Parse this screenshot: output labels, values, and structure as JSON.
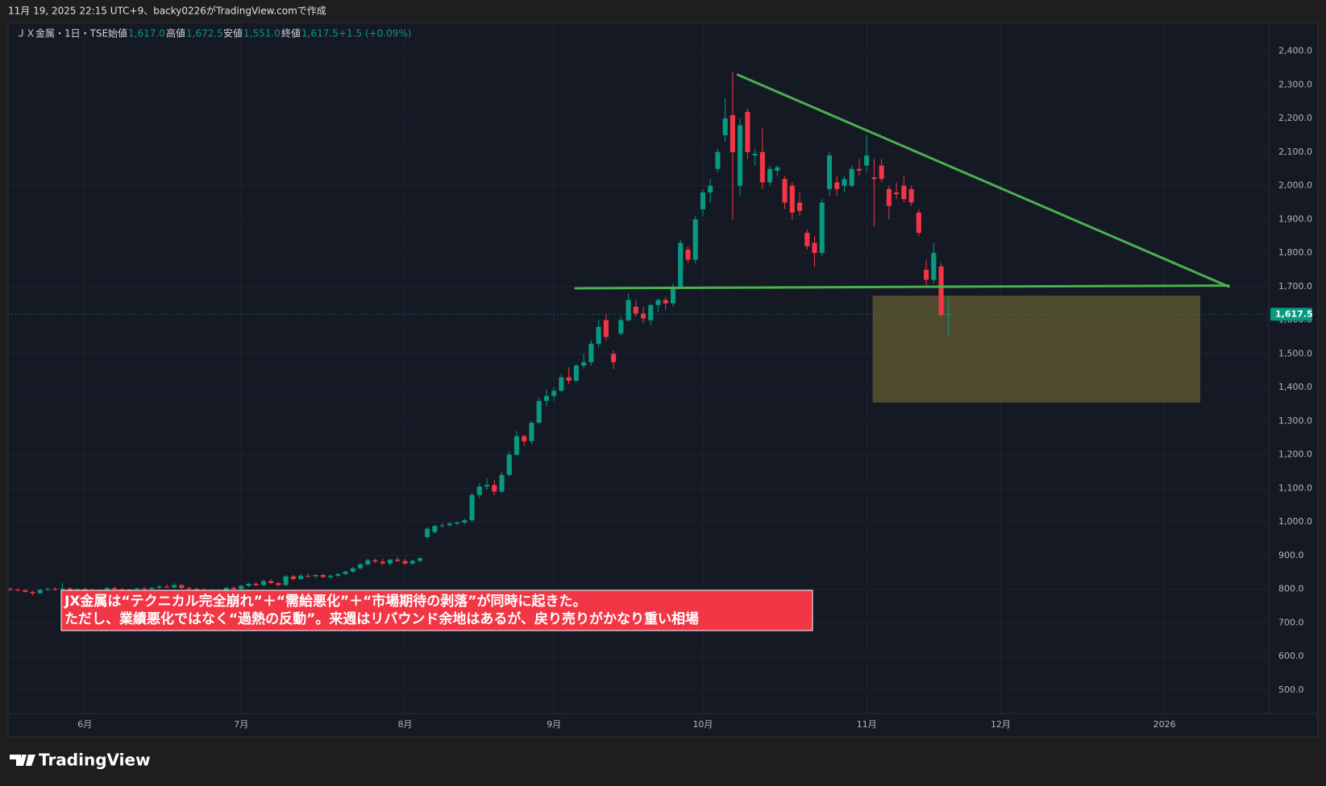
{
  "chart_data": {
    "type": "candlestick",
    "caption": "11月 19, 2025 22:15 UTC+9、backy0226がTradingView.comで作成",
    "brand": "TradingView",
    "legend": {
      "symbol": "ＪＸ金属・1日・TSE",
      "open_label": "始値",
      "open": "1,617.0",
      "high_label": "高値",
      "high": "1,672.5",
      "low_label": "安値",
      "low": "1,551.0",
      "close_label": "終値",
      "close": "1,617.5",
      "change": "+1.5 (+0.09%)"
    },
    "annotation": [
      "JX金属は“テクニカル完全崩れ”＋“需給悪化”＋“市場期待の剥落”が同時に起きた。",
      "ただし、業績悪化ではなく“過熱の反動”。来週はリバウンド余地はあるが、戻り売りがかなり重い相場"
    ],
    "up_color": "#089981",
    "down_color": "#f23645",
    "xlim": [
      -0.2,
      169
    ],
    "ylim": [
      430,
      2483
    ],
    "xticks": [
      {
        "value": 10,
        "label": "6月"
      },
      {
        "value": 31,
        "label": "7月"
      },
      {
        "value": 53,
        "label": "8月"
      },
      {
        "value": 73,
        "label": "9月"
      },
      {
        "value": 93,
        "label": "10月"
      },
      {
        "value": 115,
        "label": "11月"
      },
      {
        "value": 133,
        "label": "12月"
      },
      {
        "value": 155,
        "label": "2026"
      }
    ],
    "yticks": [
      {
        "value": 500,
        "label": "500.0"
      },
      {
        "value": 600,
        "label": "600.0"
      },
      {
        "value": 700,
        "label": "700.0"
      },
      {
        "value": 800,
        "label": "800.0"
      },
      {
        "value": 900,
        "label": "900.0"
      },
      {
        "value": 1000,
        "label": "1,000.0"
      },
      {
        "value": 1100,
        "label": "1,100.0"
      },
      {
        "value": 1200,
        "label": "1,200.0"
      },
      {
        "value": 1300,
        "label": "1,300.0"
      },
      {
        "value": 1400,
        "label": "1,400.0"
      },
      {
        "value": 1500,
        "label": "1,500.0"
      },
      {
        "value": 1600,
        "label": "1,600.0"
      },
      {
        "value": 1700,
        "label": "1,700.0"
      },
      {
        "value": 1800,
        "label": "1,800.0"
      },
      {
        "value": 1900,
        "label": "1,900.0"
      },
      {
        "value": 2000,
        "label": "2,000.0"
      },
      {
        "value": 2100,
        "label": "2,100.0"
      },
      {
        "value": 2200,
        "label": "2,200.0"
      },
      {
        "value": 2300,
        "label": "2,300.0"
      },
      {
        "value": 2400,
        "label": "2,400.0"
      }
    ],
    "grid": true,
    "last_price": {
      "value": 1617.5,
      "label": "1,617.5"
    },
    "trendlines": [
      {
        "color": "#4caf50",
        "points": [
          [
            97.7,
            2330
          ],
          [
            163.6,
            1700
          ]
        ]
      },
      {
        "color": "#4caf50",
        "points": [
          [
            75.9,
            1695
          ],
          [
            163.6,
            1703
          ]
        ]
      }
    ],
    "zone": {
      "color": "#5a5430",
      "x": [
        115.8,
        159.8
      ],
      "y": [
        1355,
        1673
      ]
    },
    "candles": [
      [
        800,
        805,
        795,
        798
      ],
      [
        798,
        803,
        793,
        797
      ],
      [
        797,
        800,
        790,
        792
      ],
      [
        792,
        795,
        782,
        788
      ],
      [
        788,
        800,
        786,
        798
      ],
      [
        798,
        805,
        795,
        800
      ],
      [
        800,
        806,
        796,
        799
      ],
      [
        799,
        818,
        795,
        802
      ],
      [
        802,
        806,
        794,
        796
      ],
      [
        796,
        802,
        790,
        800
      ],
      [
        800,
        805,
        795,
        797
      ],
      [
        797,
        802,
        792,
        795
      ],
      [
        795,
        800,
        788,
        798
      ],
      [
        798,
        806,
        794,
        803
      ],
      [
        803,
        808,
        797,
        799
      ],
      [
        799,
        804,
        793,
        796
      ],
      [
        796,
        801,
        790,
        799
      ],
      [
        799,
        805,
        795,
        802
      ],
      [
        802,
        807,
        797,
        800
      ],
      [
        800,
        806,
        795,
        804
      ],
      [
        804,
        812,
        800,
        808
      ],
      [
        808,
        814,
        803,
        805
      ],
      [
        805,
        818,
        802,
        812
      ],
      [
        812,
        815,
        800,
        803
      ],
      [
        803,
        808,
        796,
        800
      ],
      [
        800,
        805,
        794,
        798
      ],
      [
        798,
        803,
        792,
        796
      ],
      [
        796,
        800,
        790,
        794
      ],
      [
        794,
        799,
        789,
        797
      ],
      [
        797,
        806,
        794,
        804
      ],
      [
        804,
        810,
        798,
        800
      ],
      [
        800,
        812,
        797,
        810
      ],
      [
        810,
        820,
        806,
        816
      ],
      [
        816,
        822,
        808,
        812
      ],
      [
        812,
        828,
        810,
        824
      ],
      [
        824,
        830,
        815,
        818
      ],
      [
        818,
        822,
        808,
        812
      ],
      [
        812,
        842,
        810,
        838
      ],
      [
        838,
        842,
        826,
        830
      ],
      [
        830,
        845,
        828,
        840
      ],
      [
        840,
        846,
        834,
        838
      ],
      [
        838,
        844,
        832,
        842
      ],
      [
        842,
        846,
        834,
        836
      ],
      [
        836,
        844,
        830,
        840
      ],
      [
        840,
        848,
        836,
        845
      ],
      [
        845,
        856,
        842,
        852
      ],
      [
        852,
        866,
        848,
        862
      ],
      [
        862,
        878,
        858,
        874
      ],
      [
        874,
        892,
        870,
        886
      ],
      [
        886,
        892,
        878,
        882
      ],
      [
        882,
        890,
        872,
        876
      ],
      [
        876,
        890,
        870,
        888
      ],
      [
        888,
        896,
        880,
        884
      ],
      [
        884,
        890,
        872,
        876
      ],
      [
        876,
        888,
        872,
        884
      ],
      [
        884,
        896,
        880,
        892
      ],
      [
        955,
        985,
        950,
        980
      ],
      [
        970,
        992,
        965,
        988
      ],
      [
        988,
        996,
        982,
        990
      ],
      [
        990,
        1000,
        985,
        995
      ],
      [
        995,
        1002,
        990,
        998
      ],
      [
        998,
        1010,
        992,
        1005
      ],
      [
        1005,
        1085,
        1000,
        1080
      ],
      [
        1080,
        1115,
        1070,
        1105
      ],
      [
        1105,
        1130,
        1095,
        1110
      ],
      [
        1110,
        1125,
        1080,
        1090
      ],
      [
        1090,
        1150,
        1085,
        1140
      ],
      [
        1140,
        1210,
        1135,
        1200
      ],
      [
        1200,
        1270,
        1195,
        1255
      ],
      [
        1255,
        1260,
        1225,
        1240
      ],
      [
        1240,
        1300,
        1230,
        1295
      ],
      [
        1295,
        1370,
        1290,
        1360
      ],
      [
        1360,
        1395,
        1345,
        1375
      ],
      [
        1375,
        1400,
        1360,
        1390
      ],
      [
        1390,
        1440,
        1385,
        1430
      ],
      [
        1430,
        1460,
        1410,
        1420
      ],
      [
        1420,
        1470,
        1415,
        1465
      ],
      [
        1465,
        1500,
        1455,
        1475
      ],
      [
        1475,
        1540,
        1465,
        1530
      ],
      [
        1530,
        1600,
        1520,
        1580
      ],
      [
        1600,
        1620,
        1540,
        1550
      ],
      [
        1500,
        1510,
        1455,
        1475
      ],
      [
        1560,
        1610,
        1555,
        1600
      ],
      [
        1600,
        1680,
        1595,
        1660
      ],
      [
        1640,
        1660,
        1610,
        1620
      ],
      [
        1620,
        1640,
        1590,
        1605
      ],
      [
        1600,
        1650,
        1585,
        1645
      ],
      [
        1645,
        1665,
        1625,
        1660
      ],
      [
        1660,
        1670,
        1630,
        1650
      ],
      [
        1650,
        1710,
        1640,
        1700
      ],
      [
        1700,
        1840,
        1695,
        1830
      ],
      [
        1810,
        1820,
        1770,
        1780
      ],
      [
        1780,
        1910,
        1770,
        1900
      ],
      [
        1930,
        1990,
        1910,
        1980
      ],
      [
        1980,
        2020,
        1950,
        2000
      ],
      [
        2050,
        2110,
        2040,
        2100
      ],
      [
        2150,
        2260,
        2130,
        2200
      ],
      [
        2210,
        2340,
        1900,
        2100
      ],
      [
        2000,
        2200,
        1970,
        2180
      ],
      [
        2220,
        2230,
        2080,
        2100
      ],
      [
        2090,
        2110,
        2060,
        2095
      ],
      [
        2100,
        2170,
        1990,
        2010
      ],
      [
        2010,
        2060,
        2000,
        2050
      ],
      [
        2045,
        2060,
        2030,
        2055
      ],
      [
        2020,
        2030,
        1930,
        1950
      ],
      [
        2000,
        2010,
        1900,
        1920
      ],
      [
        1950,
        1980,
        1910,
        1925
      ],
      [
        1860,
        1870,
        1810,
        1820
      ],
      [
        1830,
        1850,
        1760,
        1800
      ],
      [
        1800,
        1960,
        1790,
        1950
      ],
      [
        1990,
        2100,
        1970,
        2090
      ],
      [
        2010,
        2030,
        1970,
        1990
      ],
      [
        2000,
        2030,
        1980,
        2020
      ],
      [
        2000,
        2060,
        1995,
        2050
      ],
      [
        2050,
        2080,
        2030,
        2045
      ],
      [
        2060,
        2150,
        2040,
        2090
      ],
      [
        2025,
        2080,
        1880,
        2020
      ],
      [
        2060,
        2080,
        2010,
        2020
      ],
      [
        1990,
        2000,
        1900,
        1940
      ],
      [
        1980,
        2010,
        1960,
        1975
      ],
      [
        2000,
        2030,
        1950,
        1960
      ],
      [
        1990,
        2000,
        1940,
        1950
      ],
      [
        1920,
        1930,
        1850,
        1860
      ],
      [
        1750,
        1780,
        1700,
        1720
      ],
      [
        1720,
        1830,
        1710,
        1800
      ],
      [
        1760,
        1770,
        1610,
        1616
      ],
      [
        1617.0,
        1672.5,
        1551.0,
        1617.5
      ]
    ]
  }
}
